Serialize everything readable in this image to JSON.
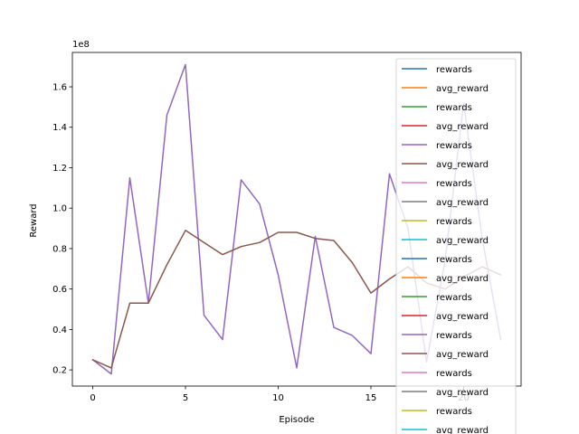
{
  "chart_data": {
    "type": "line",
    "xlabel": "Episode",
    "ylabel": "Reward",
    "y_offset_text": "1e8",
    "xlim": [
      -1.1,
      23.1
    ],
    "ylim": [
      0.12,
      1.77
    ],
    "x_ticks": [
      0,
      5,
      10,
      15,
      20
    ],
    "x_tick_labels": [
      "0",
      "5",
      "10",
      "15",
      "20"
    ],
    "y_ticks": [
      0.2,
      0.4,
      0.6,
      0.8,
      1.0,
      1.2,
      1.4,
      1.6
    ],
    "y_tick_labels": [
      "0.2",
      "0.4",
      "0.6",
      "0.8",
      "1.0",
      "1.2",
      "1.4",
      "1.6"
    ],
    "grid": false,
    "legend_position": "right",
    "x": [
      0,
      1,
      2,
      3,
      4,
      5,
      6,
      7,
      8,
      9,
      10,
      11,
      12,
      13,
      14,
      15,
      16,
      17,
      18,
      19,
      20,
      21,
      22
    ],
    "series": [
      {
        "name": "rewards",
        "color": "#9467bd",
        "values": [
          0.25,
          0.18,
          1.15,
          0.53,
          1.46,
          1.71,
          0.47,
          0.35,
          1.14,
          1.02,
          0.67,
          0.21,
          0.86,
          0.41,
          0.37,
          0.28,
          1.17,
          0.9,
          0.24,
          0.74,
          1.52,
          0.85,
          0.35
        ]
      },
      {
        "name": "avg_reward",
        "color": "#8c564b",
        "values": [
          0.25,
          0.21,
          0.53,
          0.53,
          0.72,
          0.89,
          0.83,
          0.77,
          0.81,
          0.83,
          0.88,
          0.88,
          0.85,
          0.84,
          0.73,
          0.58,
          0.65,
          0.71,
          0.63,
          0.6,
          0.66,
          0.71,
          0.67
        ]
      }
    ],
    "legend": {
      "entries": [
        {
          "label": "rewards",
          "color": "#1f77b4"
        },
        {
          "label": "avg_reward",
          "color": "#ff7f0e"
        },
        {
          "label": "rewards",
          "color": "#2ca02c"
        },
        {
          "label": "avg_reward",
          "color": "#d62728"
        },
        {
          "label": "rewards",
          "color": "#9467bd"
        },
        {
          "label": "avg_reward",
          "color": "#8c564b"
        },
        {
          "label": "rewards",
          "color": "#e377c2"
        },
        {
          "label": "avg_reward",
          "color": "#7f7f7f"
        },
        {
          "label": "rewards",
          "color": "#bcbd22"
        },
        {
          "label": "avg_reward",
          "color": "#17becf"
        },
        {
          "label": "rewards",
          "color": "#1f77b4"
        },
        {
          "label": "avg_reward",
          "color": "#ff7f0e"
        },
        {
          "label": "rewards",
          "color": "#2ca02c"
        },
        {
          "label": "avg_reward",
          "color": "#d62728"
        },
        {
          "label": "rewards",
          "color": "#9467bd"
        },
        {
          "label": "avg_reward",
          "color": "#8c564b"
        },
        {
          "label": "rewards",
          "color": "#e377c2"
        },
        {
          "label": "avg_reward",
          "color": "#7f7f7f"
        },
        {
          "label": "rewards",
          "color": "#bcbd22"
        },
        {
          "label": "avg_reward",
          "color": "#17becf"
        }
      ]
    }
  }
}
